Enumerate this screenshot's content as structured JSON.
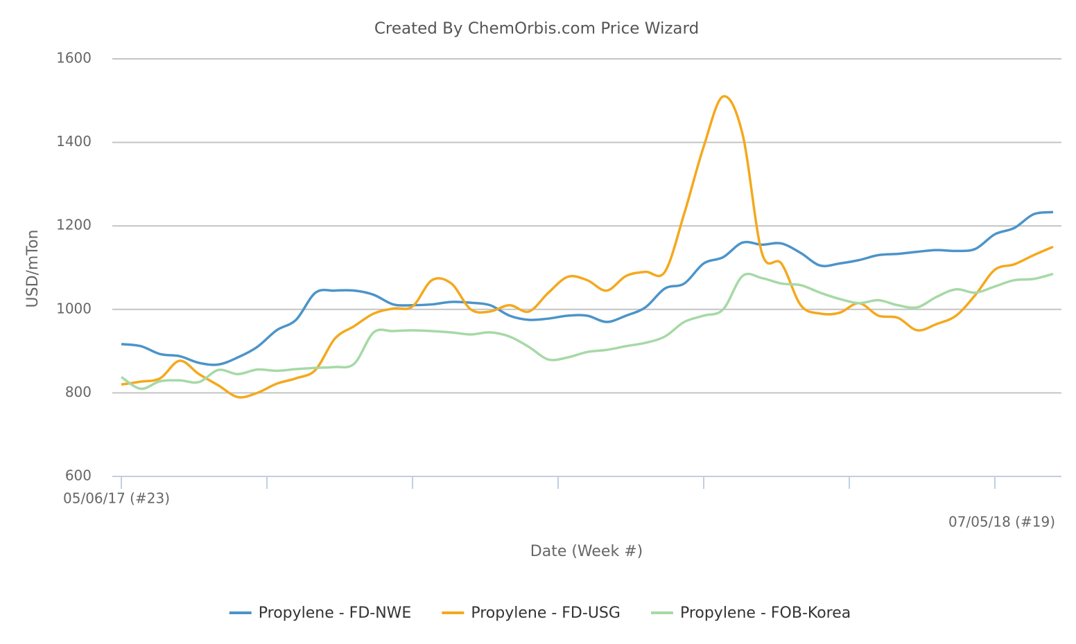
{
  "chart_data": {
    "type": "line",
    "title": "Created By ChemOrbis.com Price Wizard",
    "y_label": "USD/mTon",
    "x_label": "Date (Week #)",
    "categories": [
      "05/06/17 (#23)",
      null,
      null,
      null,
      null,
      null,
      null,
      null,
      null,
      null,
      null,
      null,
      null,
      null,
      null,
      null,
      null,
      null,
      null,
      null,
      null,
      null,
      null,
      null,
      null,
      null,
      null,
      null,
      null,
      null,
      null,
      null,
      null,
      null,
      null,
      null,
      null,
      null,
      null,
      null,
      null,
      null,
      null,
      null,
      null,
      null,
      null,
      null,
      "07/05/18 (#19)"
    ],
    "series": [
      {
        "name": "Propylene - FD-NWE",
        "color": "#4b94c9",
        "values": [
          917,
          912,
          893,
          888,
          872,
          868,
          885,
          910,
          950,
          975,
          1040,
          1045,
          1045,
          1035,
          1012,
          1010,
          1012,
          1018,
          1016,
          1010,
          985,
          975,
          978,
          985,
          985,
          970,
          985,
          1005,
          1050,
          1062,
          1110,
          1125,
          1160,
          1155,
          1158,
          1135,
          1105,
          1110,
          1118,
          1130,
          1133,
          1138,
          1142,
          1140,
          1145,
          1180,
          1195,
          1228,
          1233
        ]
      },
      {
        "name": "Propylene - FD-USG",
        "color": "#f5a81c",
        "values": [
          820,
          827,
          835,
          877,
          845,
          818,
          790,
          800,
          822,
          835,
          855,
          930,
          960,
          990,
          1002,
          1007,
          1070,
          1062,
          1000,
          995,
          1010,
          995,
          1040,
          1078,
          1070,
          1045,
          1080,
          1090,
          1090,
          1230,
          1390,
          1510,
          1420,
          1135,
          1110,
          1010,
          990,
          992,
          1015,
          985,
          980,
          950,
          965,
          985,
          1035,
          1095,
          1108,
          1130,
          1150
        ]
      },
      {
        "name": "Propylene - FOB-Korea",
        "color": "#a6d9a5",
        "values": [
          838,
          810,
          828,
          830,
          826,
          855,
          845,
          856,
          853,
          857,
          860,
          862,
          870,
          945,
          948,
          950,
          948,
          945,
          940,
          945,
          935,
          910,
          880,
          885,
          898,
          903,
          912,
          920,
          935,
          970,
          985,
          1000,
          1080,
          1075,
          1062,
          1058,
          1040,
          1025,
          1015,
          1022,
          1010,
          1005,
          1030,
          1048,
          1040,
          1055,
          1070,
          1073,
          1085
        ]
      }
    ],
    "ylim": [
      600,
      1600
    ],
    "yticks": [
      600,
      800,
      1000,
      1200,
      1400,
      1600
    ],
    "grid": true,
    "legend": "bottom"
  }
}
